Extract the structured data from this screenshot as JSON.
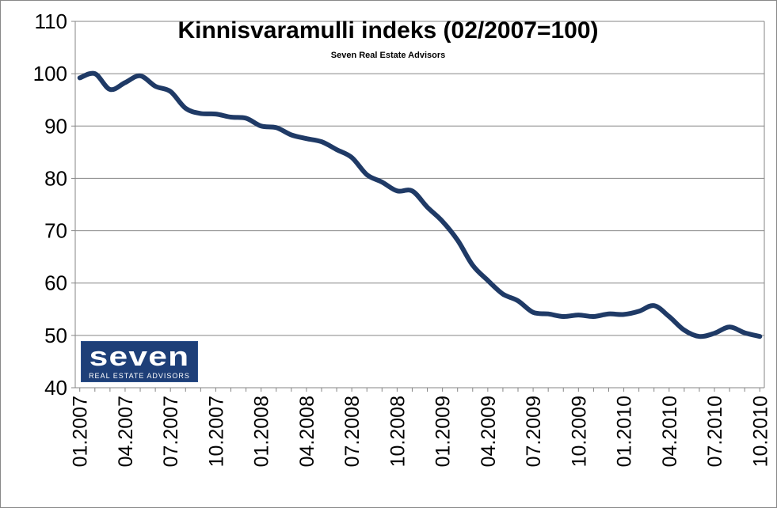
{
  "chart_data": {
    "type": "line",
    "title": "Kinnisvaramulli indeks (02/2007=100)",
    "subtitle": "Seven Real Estate Advisors",
    "ylim": [
      40,
      110
    ],
    "y_ticks": [
      "40",
      "50",
      "60",
      "70",
      "80",
      "90",
      "100",
      "110"
    ],
    "x_tick_labels": [
      "01.2007",
      "04.2007",
      "07.2007",
      "10.2007",
      "01.2008",
      "04.2008",
      "07.2008",
      "10.2008",
      "01.2009",
      "04.2009",
      "07.2009",
      "10.2009",
      "01.2010",
      "04.2010",
      "07.2010",
      "10.2010"
    ],
    "grid": "horizontal",
    "series_color": "#1f3a66",
    "series": [
      {
        "x": [
          "01.2007",
          "02.2007",
          "03.2007",
          "04.2007",
          "05.2007",
          "06.2007",
          "07.2007",
          "08.2007",
          "09.2007",
          "10.2007",
          "11.2007",
          "12.2007",
          "01.2008",
          "02.2008",
          "03.2008",
          "04.2008",
          "05.2008",
          "06.2008",
          "07.2008",
          "08.2008",
          "09.2008",
          "10.2008",
          "11.2008",
          "12.2008",
          "01.2009",
          "02.2009",
          "03.2009",
          "04.2009",
          "05.2009",
          "06.2009",
          "07.2009",
          "08.2009",
          "09.2009",
          "10.2009",
          "11.2009",
          "12.2009",
          "01.2010",
          "02.2010",
          "03.2010",
          "04.2010",
          "05.2010",
          "06.2010",
          "07.2010",
          "08.2010",
          "09.2010",
          "10.2010"
        ],
        "values": [
          99.2,
          100.0,
          97.0,
          98.3,
          99.6,
          97.6,
          96.6,
          93.4,
          92.4,
          92.3,
          91.7,
          91.5,
          90.0,
          89.7,
          88.3,
          87.6,
          87.0,
          85.5,
          84.0,
          80.7,
          79.3,
          77.6,
          77.6,
          74.5,
          71.8,
          68.2,
          63.4,
          60.5,
          57.9,
          56.6,
          54.4,
          54.1,
          53.6,
          53.9,
          53.6,
          54.1,
          54.0,
          54.6,
          55.7,
          53.6,
          51.0,
          49.8,
          50.4,
          51.6,
          50.5,
          49.8
        ]
      }
    ]
  },
  "logo": {
    "main": "seven",
    "sub": "REAL ESTATE ADVISORS"
  }
}
